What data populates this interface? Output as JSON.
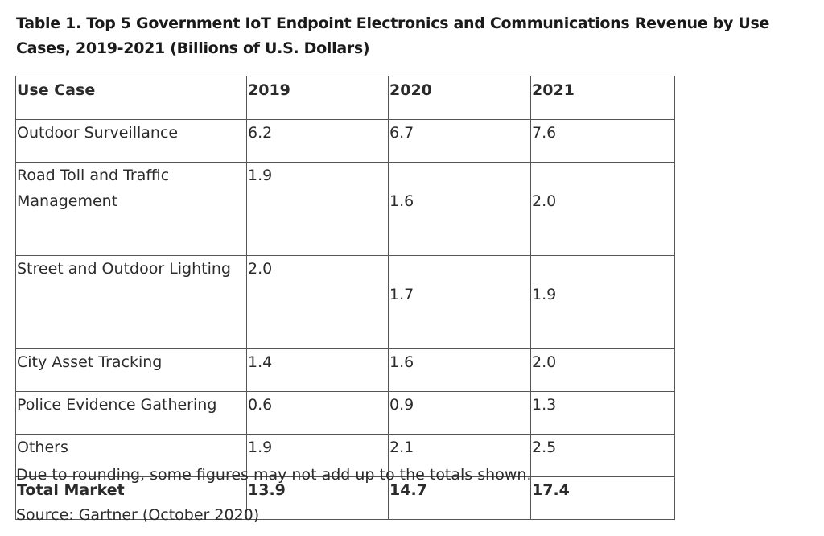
{
  "title": "Table 1. Top 5 Government IoT Endpoint Electronics and Communications Revenue by Use Cases, 2019-2021 (Billions of U.S. Dollars)",
  "table": {
    "headers": [
      "Use Case",
      "2019",
      "2020",
      "2021"
    ],
    "rows": [
      [
        "Outdoor Surveillance",
        "6.2",
        "6.7",
        "7.6"
      ],
      [
        "Road Toll and Traffic Management",
        "1.9",
        "1.6",
        "2.0"
      ],
      [
        "Street and Outdoor Lighting",
        "2.0",
        "1.7",
        "1.9"
      ],
      [
        "City Asset Tracking",
        "1.4",
        "1.6",
        "2.0"
      ],
      [
        "Police Evidence Gathering",
        "0.6",
        "0.9",
        "1.3"
      ],
      [
        "Others",
        "1.9",
        "2.1",
        "2.5"
      ]
    ],
    "total": [
      "Total Market",
      "13.9",
      "14.7",
      "17.4"
    ]
  },
  "note": "Due to rounding, some figures may not add up to the totals shown.",
  "source": "Source: Gartner (October 2020)"
}
